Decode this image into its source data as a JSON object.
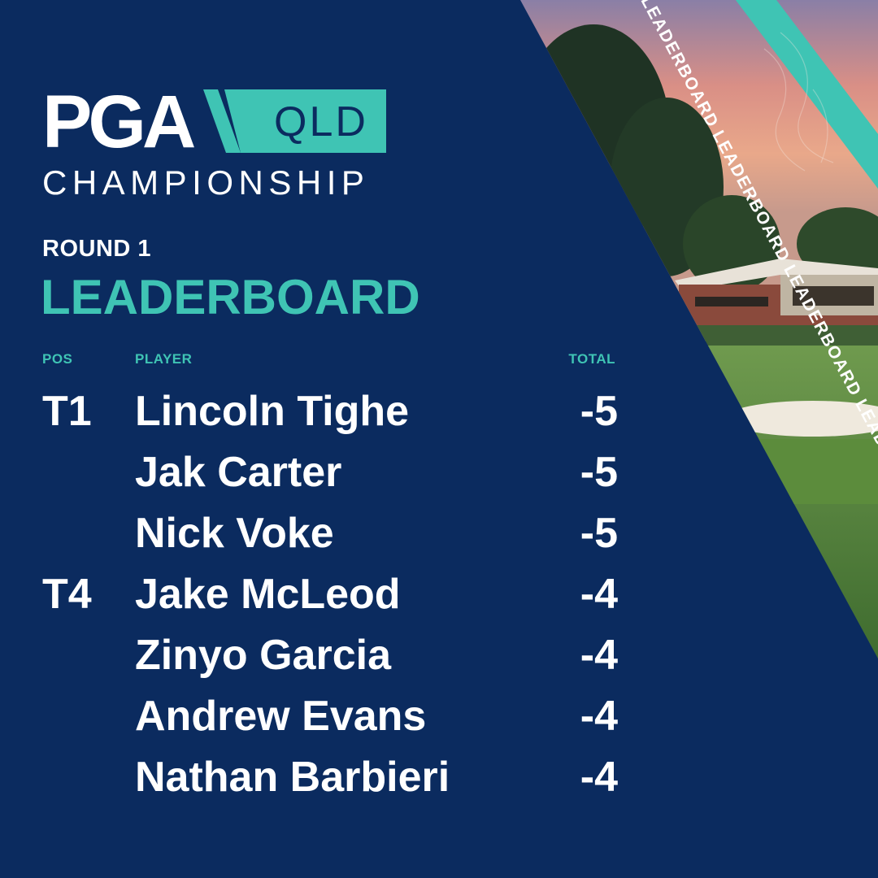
{
  "logo": {
    "pga": "PGA",
    "region": "QLD",
    "subtitle": "CHAMPIONSHIP"
  },
  "heading": {
    "round": "ROUND 1",
    "title": "LEADERBOARD"
  },
  "banner_text": "LEADERBOARD LEADERBOARD LEADERBOARD LEADE",
  "columns": {
    "pos": "POS",
    "player": "PLAYER",
    "total": "TOTAL"
  },
  "rows": [
    {
      "pos": "T1",
      "player": "Lincoln Tighe",
      "total": "-5"
    },
    {
      "pos": "",
      "player": "Jak Carter",
      "total": "-5"
    },
    {
      "pos": "",
      "player": "Nick Voke",
      "total": "-5"
    },
    {
      "pos": "T4",
      "player": "Jake McLeod",
      "total": "-4"
    },
    {
      "pos": "",
      "player": "Zinyo Garcia",
      "total": "-4"
    },
    {
      "pos": "",
      "player": "Andrew Evans",
      "total": "-4"
    },
    {
      "pos": "",
      "player": "Nathan Barbieri",
      "total": "-4"
    }
  ],
  "colors": {
    "navy": "#0b2b5f",
    "teal": "#3fc4b4",
    "white": "#ffffff"
  }
}
